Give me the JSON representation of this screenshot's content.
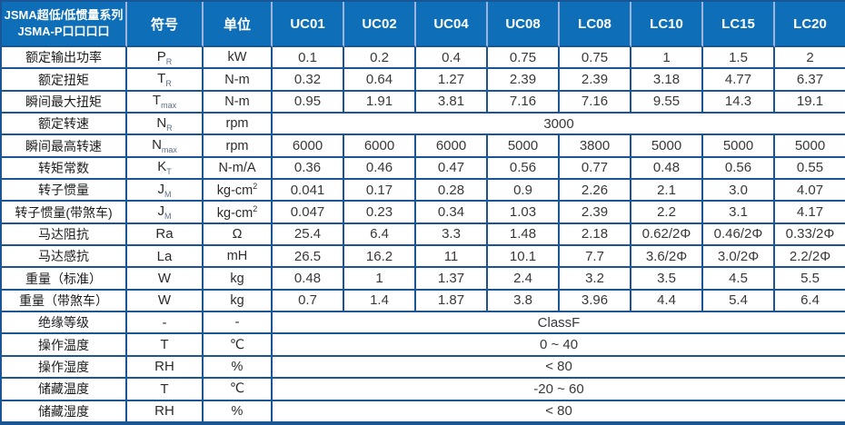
{
  "colors": {
    "header_bg": "#0e6fb8",
    "header_divider": "#9db3da",
    "grid_line": "#1a5596",
    "header_text": "#ffffff",
    "body_text": "#333333"
  },
  "table": {
    "title_line1": "JSMA超低/低惯量系列",
    "title_line2": "JSMA-P口口口口",
    "header": {
      "symbol": "符号",
      "unit": "单位",
      "models": [
        "UC01",
        "UC02",
        "UC04",
        "UC08",
        "LC08",
        "LC10",
        "LC15",
        "LC20"
      ]
    },
    "rows": [
      {
        "label": "额定输出功率",
        "symbol": "P",
        "symbol_sub": "R",
        "unit": "kW",
        "values": [
          "0.1",
          "0.2",
          "0.4",
          "0.75",
          "0.75",
          "1",
          "1.5",
          "2"
        ]
      },
      {
        "label": "额定扭矩",
        "symbol": "T",
        "symbol_sub": "R",
        "unit": "N-m",
        "values": [
          "0.32",
          "0.64",
          "1.27",
          "2.39",
          "2.39",
          "3.18",
          "4.77",
          "6.37"
        ]
      },
      {
        "label": "瞬间最大扭矩",
        "symbol": "T",
        "symbol_sub": "max",
        "unit": "N-m",
        "values": [
          "0.95",
          "1.91",
          "3.81",
          "7.16",
          "7.16",
          "9.55",
          "14.3",
          "19.1"
        ]
      },
      {
        "label": "额定转速",
        "symbol": "N",
        "symbol_sub": "R",
        "unit": "rpm",
        "merged": "3000"
      },
      {
        "label": "瞬间最高转速",
        "symbol": "N",
        "symbol_sub": "max",
        "unit": "rpm",
        "values": [
          "6000",
          "6000",
          "6000",
          "5000",
          "3800",
          "5000",
          "5000",
          "5000"
        ]
      },
      {
        "label": "转矩常数",
        "symbol": "K",
        "symbol_sub": "T",
        "unit": "N-m/A",
        "values": [
          "0.36",
          "0.46",
          "0.47",
          "0.56",
          "0.77",
          "0.48",
          "0.56",
          "0.55"
        ]
      },
      {
        "label": "转子惯量",
        "symbol": "J",
        "symbol_sub": "M",
        "unit": "kg-cm",
        "unit_sup": "2",
        "values": [
          "0.041",
          "0.17",
          "0.28",
          "0.9",
          "2.26",
          "2.1",
          "3.0",
          "4.07"
        ]
      },
      {
        "label": "转子惯量(带煞车)",
        "symbol": "J",
        "symbol_sub": "M",
        "unit": "kg-cm",
        "unit_sup": "2",
        "values": [
          "0.047",
          "0.23",
          "0.34",
          "1.03",
          "2.39",
          "2.2",
          "3.1",
          "4.17"
        ]
      },
      {
        "label": "马达阻抗",
        "symbol": "Ra",
        "unit": "Ω",
        "values": [
          "25.4",
          "6.4",
          "3.3",
          "1.48",
          "2.18",
          "0.62/2Φ",
          "0.46/2Φ",
          "0.33/2Φ"
        ]
      },
      {
        "label": "马达感抗",
        "symbol": "La",
        "unit": "mH",
        "values": [
          "26.5",
          "16.2",
          "11",
          "10.1",
          "7.7",
          "3.6/2Φ",
          "3.0/2Φ",
          "2.2/2Φ"
        ]
      },
      {
        "label": "重量（标准）",
        "symbol": "W",
        "unit": "kg",
        "values": [
          "0.48",
          "1",
          "1.37",
          "2.4",
          "3.2",
          "3.5",
          "4.5",
          "5.5"
        ]
      },
      {
        "label": "重量（带煞车）",
        "symbol": "W",
        "unit": "kg",
        "values": [
          "0.7",
          "1.4",
          "1.87",
          "3.8",
          "3.96",
          "4.4",
          "5.4",
          "6.4"
        ]
      },
      {
        "label": "绝缘等级",
        "symbol": "-",
        "unit": "-",
        "merged": "ClassF"
      },
      {
        "label": "操作温度",
        "symbol": "T",
        "unit": "℃",
        "merged": "0 ~ 40"
      },
      {
        "label": "操作湿度",
        "symbol": "RH",
        "unit": "%",
        "merged": "< 80"
      },
      {
        "label": "储藏温度",
        "symbol": "T",
        "unit": "℃",
        "merged": "-20 ~ 60"
      },
      {
        "label": "储藏湿度",
        "symbol": "RH",
        "unit": "%",
        "merged": "< 80"
      }
    ]
  }
}
